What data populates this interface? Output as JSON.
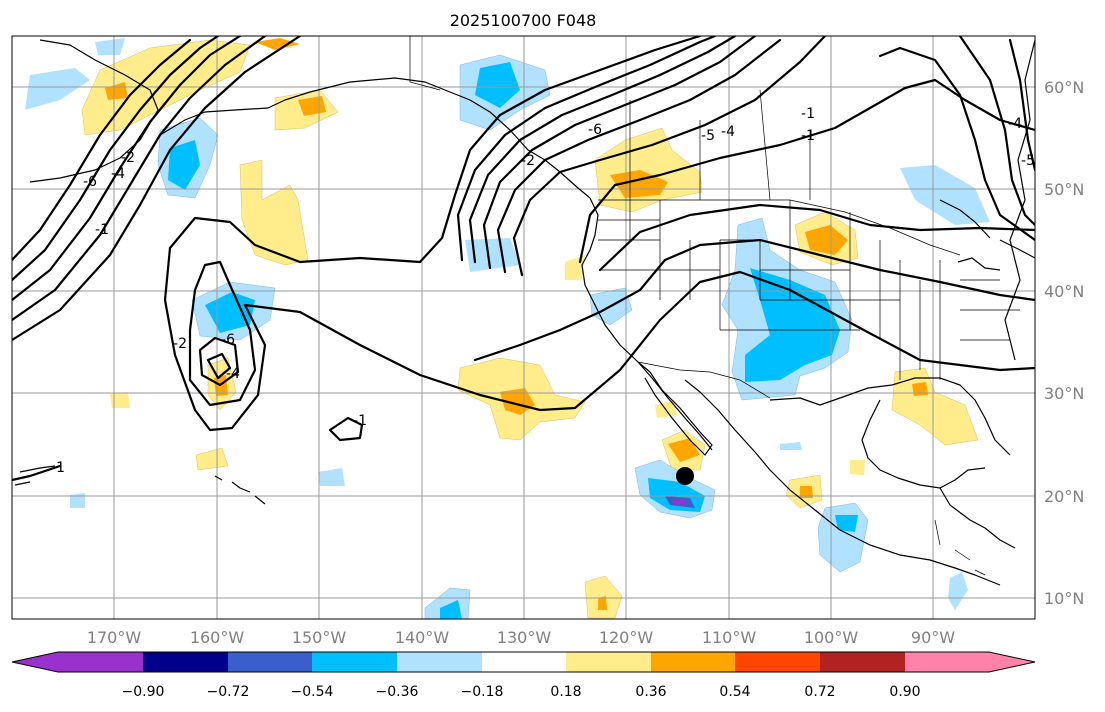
{
  "title": "2025100700 F048",
  "map": {
    "lon_labels": [
      "170°W",
      "160°W",
      "150°W",
      "140°W",
      "130°W",
      "120°W",
      "110°W",
      "100°W",
      "90°W"
    ],
    "lat_labels": [
      "60°N",
      "50°N",
      "40°N",
      "30°N",
      "20°N",
      "10°N"
    ],
    "contour_labels": [
      "-6",
      "-4",
      "-2",
      "-1",
      "-2",
      "-4",
      "-6",
      "-6",
      "-5",
      "-4",
      "-1",
      "-1",
      "-2",
      "-1",
      "-1",
      "-4",
      "-5"
    ]
  },
  "colorbar": {
    "colors": [
      "#9932cc",
      "#00008b",
      "#3a5fcd",
      "#00bfff",
      "#b0e2ff",
      "#ffffff",
      "#ffec8b",
      "#ffa500",
      "#ff4500",
      "#b22222",
      "#ff82ab"
    ],
    "tick_labels": [
      "−0.90",
      "−0.72",
      "−0.54",
      "−0.36",
      "−0.18",
      "0.18",
      "0.36",
      "0.54",
      "0.72",
      "0.90"
    ]
  },
  "colors": {
    "light_blue": "#b0e2ff",
    "blue": "#00bfff",
    "mid_blue": "#3a5fcd",
    "purple": "#9932cc",
    "yellow": "#ffec8b",
    "orange": "#ffa500"
  }
}
